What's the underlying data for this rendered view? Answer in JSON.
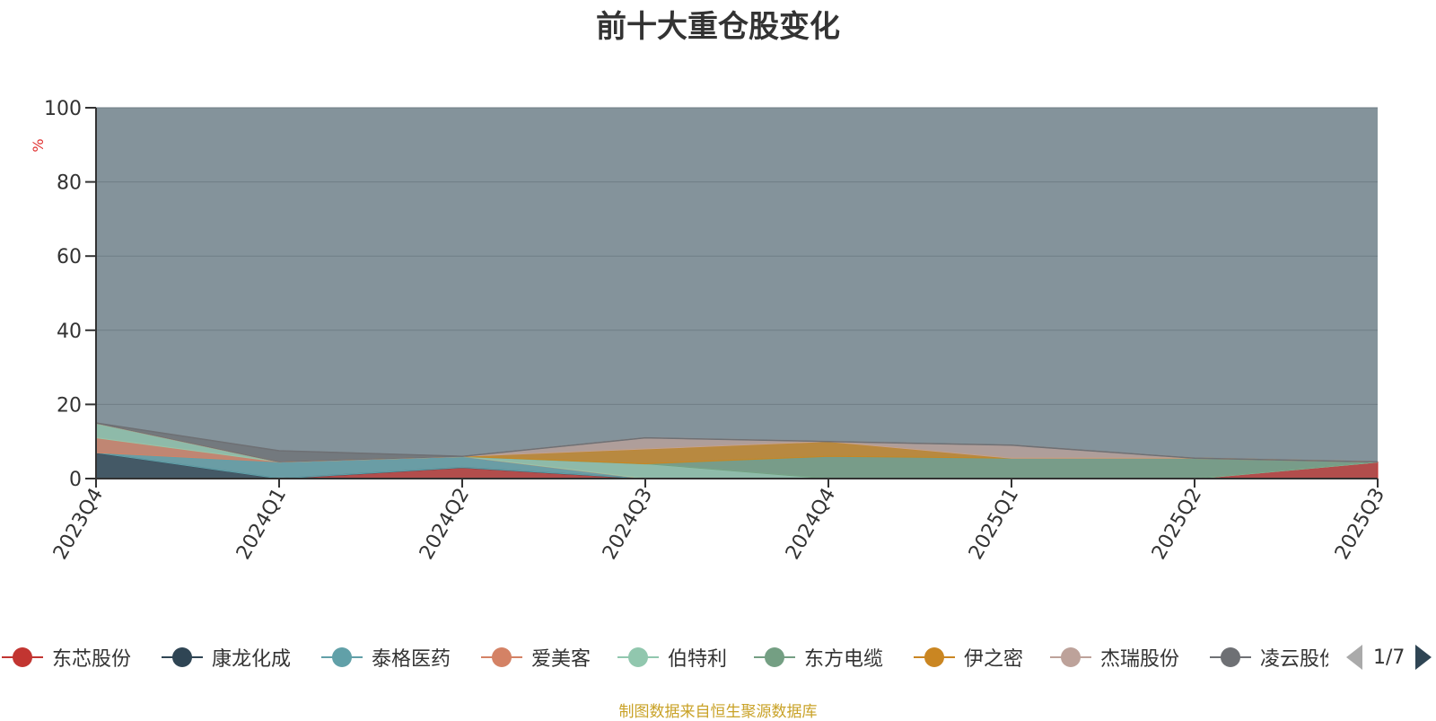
{
  "chart_data": {
    "type": "area",
    "title": "前十大重仓股变化",
    "ylabel": "%",
    "ylim": [
      0,
      100
    ],
    "y_ticks": [
      "0",
      "20",
      "40",
      "60",
      "80",
      "100"
    ],
    "categories": [
      "2023Q4",
      "2024Q1",
      "2024Q2",
      "2024Q3",
      "2024Q4",
      "2025Q1",
      "2025Q2",
      "2025Q3"
    ],
    "stacked": true,
    "series": [
      {
        "name": "东芯股份",
        "color": "#c23531",
        "values": [
          0,
          0,
          3,
          0,
          0,
          0,
          0,
          4.5
        ]
      },
      {
        "name": "康龙化成",
        "color": "#2f4554",
        "values": [
          7,
          0,
          0,
          0,
          0,
          0,
          0,
          0
        ]
      },
      {
        "name": "泰格医药",
        "color": "#61a0a8",
        "values": [
          0,
          4.5,
          3,
          0,
          0,
          0,
          0,
          0
        ]
      },
      {
        "name": "爱美客",
        "color": "#d48265",
        "values": [
          4,
          0,
          0,
          0,
          0,
          0,
          0,
          0
        ]
      },
      {
        "name": "伯特利",
        "color": "#91c7ae",
        "values": [
          4,
          0,
          0,
          4,
          0,
          0,
          0,
          0
        ]
      },
      {
        "name": "东方电缆",
        "color": "#749f83",
        "values": [
          0,
          0,
          0,
          0,
          6,
          5.5,
          5.5,
          0
        ]
      },
      {
        "name": "伊之密",
        "color": "#ca8622",
        "values": [
          0,
          0,
          0,
          4,
          4,
          0,
          0,
          0
        ]
      },
      {
        "name": "杰瑞股份",
        "color": "#bda29a",
        "values": [
          0,
          0,
          0,
          3,
          0,
          3.5,
          0,
          0
        ]
      },
      {
        "name": "凌云股份",
        "color": "#6e7074",
        "values": [
          0,
          3,
          0,
          0,
          0,
          0,
          0,
          0
        ]
      }
    ],
    "grid": true,
    "legend_position": "bottom"
  },
  "legend": {
    "items": [
      {
        "name": "东芯股份",
        "color": "#c23531"
      },
      {
        "name": "康龙化成",
        "color": "#2f4554"
      },
      {
        "name": "泰格医药",
        "color": "#61a0a8"
      },
      {
        "name": "爱美客",
        "color": "#d48265"
      },
      {
        "name": "伯特利",
        "color": "#91c7ae"
      },
      {
        "name": "东方电缆",
        "color": "#749f83"
      },
      {
        "name": "伊之密",
        "color": "#ca8622"
      },
      {
        "name": "杰瑞股份",
        "color": "#bda29a"
      },
      {
        "name": "凌云股份",
        "color": "#6e7074"
      }
    ],
    "page_text": "1/7"
  },
  "footer": {
    "source_text": "制图数据来自恒生聚源数据库"
  }
}
